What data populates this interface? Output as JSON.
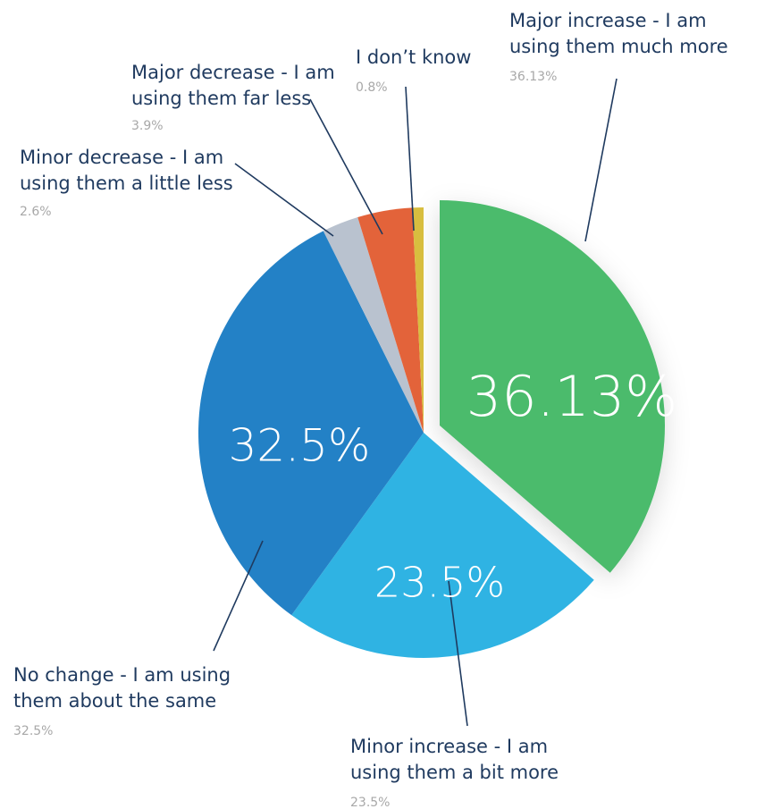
{
  "chart_data": {
    "type": "pie",
    "slices": [
      {
        "label_lines": [
          "Major increase - I am",
          "using them much more"
        ],
        "value": 36.13,
        "pct_text": "36.13%",
        "big_label": "36.13%",
        "color": "#4cbb6c",
        "exploded": true
      },
      {
        "label_lines": [
          "Minor increase - I am",
          "using them a bit more"
        ],
        "value": 23.5,
        "pct_text": "23.5%",
        "big_label": "23.5%",
        "color": "#2fb3e3"
      },
      {
        "label_lines": [
          "No change - I am using",
          "them about the same"
        ],
        "value": 32.5,
        "pct_text": "32.5%",
        "big_label": "32.5%",
        "color": "#2381c6"
      },
      {
        "label_lines": [
          "Minor decrease - I am",
          "using them a little less"
        ],
        "value": 2.6,
        "pct_text": "2.6%",
        "color": "#b9c2cf"
      },
      {
        "label_lines": [
          "Major decrease - I am",
          "using them far less"
        ],
        "value": 3.9,
        "pct_text": "3.9%",
        "color": "#e3633a"
      },
      {
        "label_lines": [
          "I don’t know"
        ],
        "value": 0.8,
        "pct_text": "0.8%",
        "color": "#d8be3f"
      }
    ]
  }
}
